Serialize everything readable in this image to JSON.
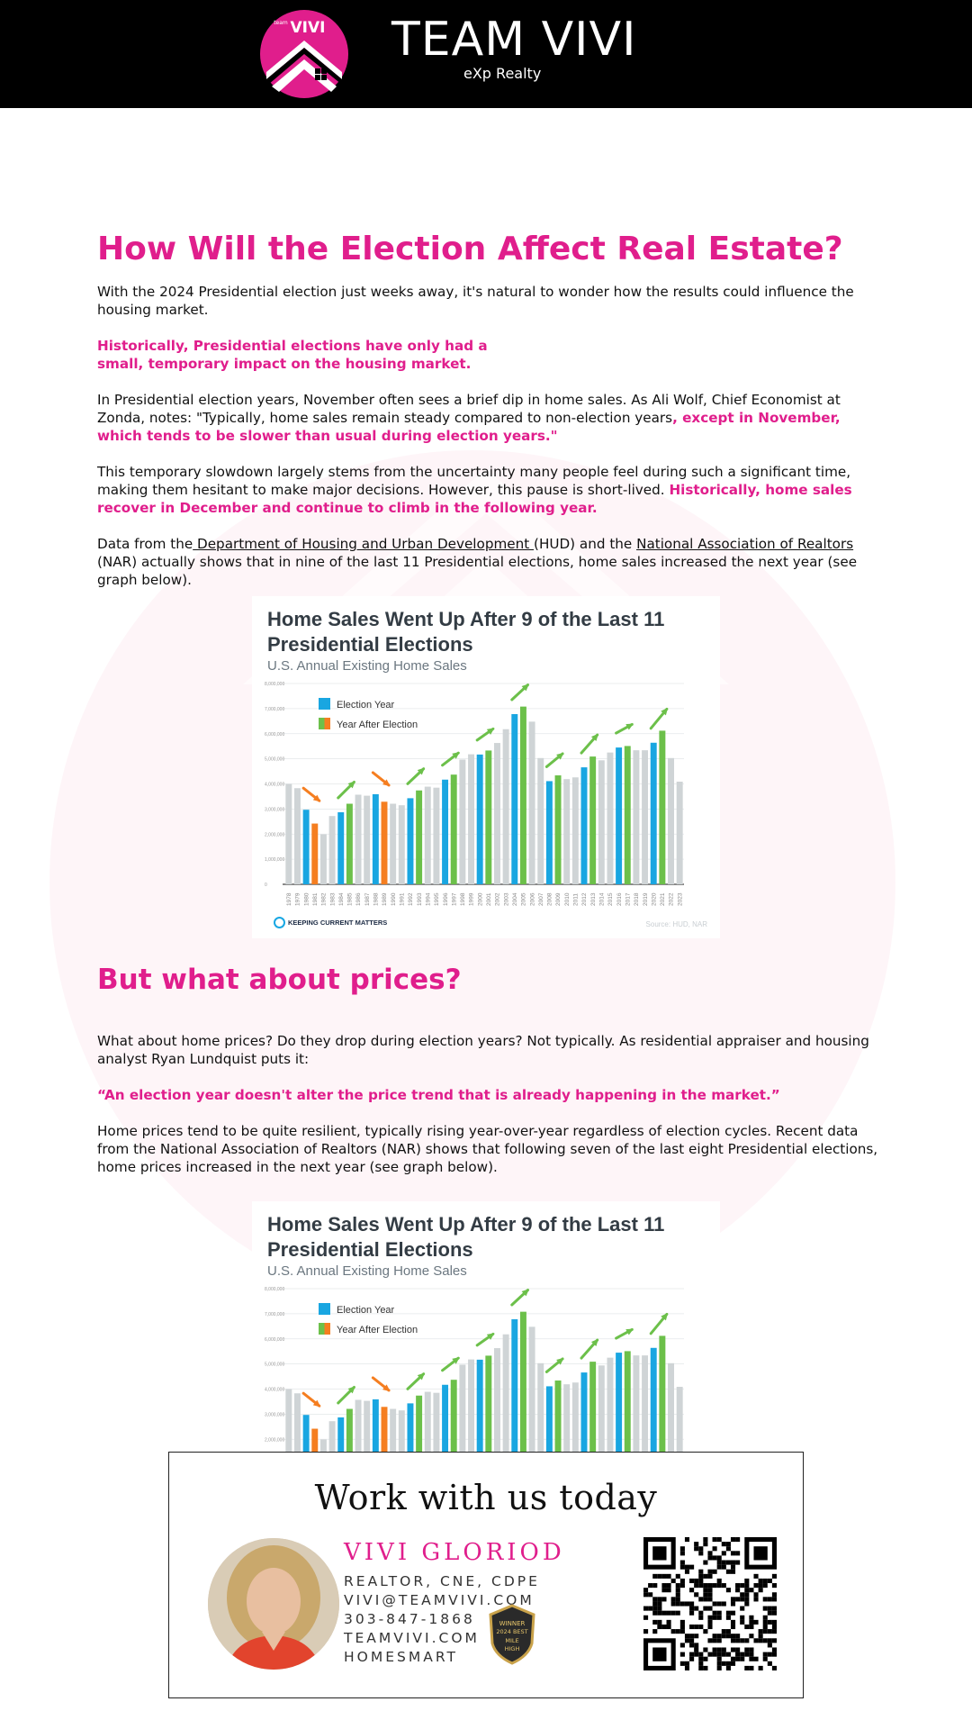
{
  "header": {
    "logo_text": "VIVI",
    "logo_small": "team",
    "brand": "TEAM VIVI",
    "sub": "eXp Realty"
  },
  "article": {
    "title": "How Will the Election Affect Real Estate?",
    "p1": "With the 2024 Presidential election just weeks away, it's natural to wonder how the results could influence the housing market.",
    "callout1_line1": "Historically, Presidential elections have only had a",
    "callout1_line2": "small, temporary impact on the housing market.",
    "p2_a": "In Presidential election years, November often sees a brief dip in home sales. As Ali Wolf, Chief Economist at Zonda, notes: \"Typically, home sales remain steady compared to non-election years",
    "p2_b": ", except in November, which tends to be slower than usual during election years.\"",
    "p3_a": "This temporary slowdown largely stems from the uncertainty many people feel during such a significant time, making them hesitant to make major decisions. However, this pause is short-lived. ",
    "p3_b": "Historically, home sales recover in December and continue to climb in the following year.",
    "p4_a": "Data from the",
    "p4_link1": " Department of Housing and Urban Development ",
    "p4_b": "(HUD) and the ",
    "p4_link2": "National Association of Realtors ",
    "p4_c": "(NAR) actually shows that in nine of the last 11 Presidential elections, home sales increased the next year (see graph below).",
    "h2": "But what about prices?",
    "p5": "What about home prices? Do they drop during election years? Not typically. As residential appraiser and housing analyst Ryan Lundquist puts it:",
    "quote": "“An election year doesn't alter the price trend that is already happening in the market.”",
    "p6": "Home prices tend to be quite resilient, typically rising year-over-year regardless of election cycles. Recent data from the National Association of Realtors (NAR) shows that following seven of the last eight Presidential elections, home prices increased in the next year (see graph below)."
  },
  "chart_labels": {
    "title": "Home Sales Went Up After 9 of the Last 11 Presidential Elections",
    "subtitle": "U.S. Annual Existing Home Sales",
    "legend_election": "Election Year",
    "legend_after": "Year After Election",
    "brand": "KEEPING CURRENT MATTERS",
    "source": "Source: HUD, NAR"
  },
  "chart_data": [
    {
      "type": "bar",
      "title": "Home Sales Went Up After 9 of the Last 11 Presidential Elections",
      "subtitle": "U.S. Annual Existing Home Sales",
      "ylim": [
        0,
        8000000
      ],
      "yticks": [
        "0",
        "1,000,000",
        "2,000,000",
        "3,000,000",
        "4,000,000",
        "5,000,000",
        "6,000,000",
        "7,000,000",
        "8,000,000"
      ],
      "categories": [
        "1978",
        "1979",
        "1980",
        "1981",
        "1982",
        "1983",
        "1984",
        "1985",
        "1986",
        "1987",
        "1988",
        "1989",
        "1990",
        "1991",
        "1992",
        "1993",
        "1994",
        "1995",
        "1996",
        "1997",
        "1998",
        "1999",
        "2000",
        "2001",
        "2002",
        "2003",
        "2004",
        "2005",
        "2006",
        "2007",
        "2008",
        "2009",
        "2010",
        "2011",
        "2012",
        "2013",
        "2014",
        "2015",
        "2016",
        "2017",
        "2018",
        "2019",
        "2020",
        "2021",
        "2022",
        "2023"
      ],
      "values": [
        4000000,
        3830000,
        2970000,
        2420000,
        1990000,
        2720000,
        2870000,
        3210000,
        3570000,
        3530000,
        3590000,
        3290000,
        3210000,
        3150000,
        3430000,
        3740000,
        3890000,
        3850000,
        4170000,
        4370000,
        4970000,
        5180000,
        5170000,
        5330000,
        5630000,
        6180000,
        6780000,
        7080000,
        6480000,
        5030000,
        4110000,
        4340000,
        4190000,
        4260000,
        4660000,
        5090000,
        4940000,
        5250000,
        5450000,
        5510000,
        5340000,
        5340000,
        5640000,
        6120000,
        5030000,
        4090000
      ],
      "kinds": [
        "o",
        "o",
        "e",
        "a",
        "o",
        "o",
        "e",
        "a",
        "o",
        "o",
        "e",
        "a",
        "o",
        "o",
        "e",
        "a",
        "o",
        "o",
        "e",
        "a",
        "o",
        "o",
        "e",
        "a",
        "o",
        "o",
        "e",
        "a",
        "o",
        "o",
        "e",
        "a",
        "o",
        "o",
        "e",
        "a",
        "o",
        "o",
        "e",
        "a",
        "o",
        "o",
        "e",
        "a",
        "o",
        "o"
      ],
      "series": [
        {
          "name": "Election Year",
          "color": "#19a6e1"
        },
        {
          "name": "Year After Election",
          "color": "#6cc04a"
        }
      ],
      "trend_arrows": [
        {
          "from": "1980",
          "to": "1981",
          "direction": "down",
          "color": "#f57e20"
        },
        {
          "from": "1984",
          "to": "1985",
          "direction": "up",
          "color": "#6cc04a"
        },
        {
          "from": "1988",
          "to": "1989",
          "direction": "down",
          "color": "#f57e20"
        },
        {
          "from": "1992",
          "to": "1993",
          "direction": "up",
          "color": "#6cc04a"
        },
        {
          "from": "1996",
          "to": "1997",
          "direction": "up",
          "color": "#6cc04a"
        },
        {
          "from": "2000",
          "to": "2001",
          "direction": "up",
          "color": "#6cc04a"
        },
        {
          "from": "2004",
          "to": "2005",
          "direction": "up",
          "color": "#6cc04a"
        },
        {
          "from": "2008",
          "to": "2009",
          "direction": "up",
          "color": "#6cc04a"
        },
        {
          "from": "2012",
          "to": "2013",
          "direction": "up",
          "color": "#6cc04a"
        },
        {
          "from": "2016",
          "to": "2017",
          "direction": "up",
          "color": "#6cc04a"
        },
        {
          "from": "2020",
          "to": "2021",
          "direction": "up",
          "color": "#6cc04a"
        }
      ],
      "colors": {
        "other": "#cfd4d6",
        "election": "#19a6e1",
        "after_up": "#6cc04a",
        "after_down": "#f57e20"
      },
      "grid": true,
      "legend_position": "top-left"
    },
    {
      "type": "bar",
      "title": "Home Sales Went Up After 9 of the Last 11 Presidential Elections",
      "subtitle": "U.S. Annual Existing Home Sales",
      "ylim": [
        0,
        8000000
      ],
      "note": "Same chart repeated",
      "grid": true,
      "legend_position": "top-left"
    }
  ],
  "cta": {
    "title": "Work with us today",
    "name": "VIVI GLORIOD",
    "line1": "REALTOR, CNE, CDPE",
    "line2": "VIVI@TEAMVIVI.COM",
    "line3": "303-847-1868",
    "line4": "TEAMVIVI.COM",
    "line5": "HOMESMART",
    "badge_line1": "WINNER",
    "badge_line2": "2024 BEST",
    "badge_line3": "MILE",
    "badge_line4": "HIGH"
  }
}
